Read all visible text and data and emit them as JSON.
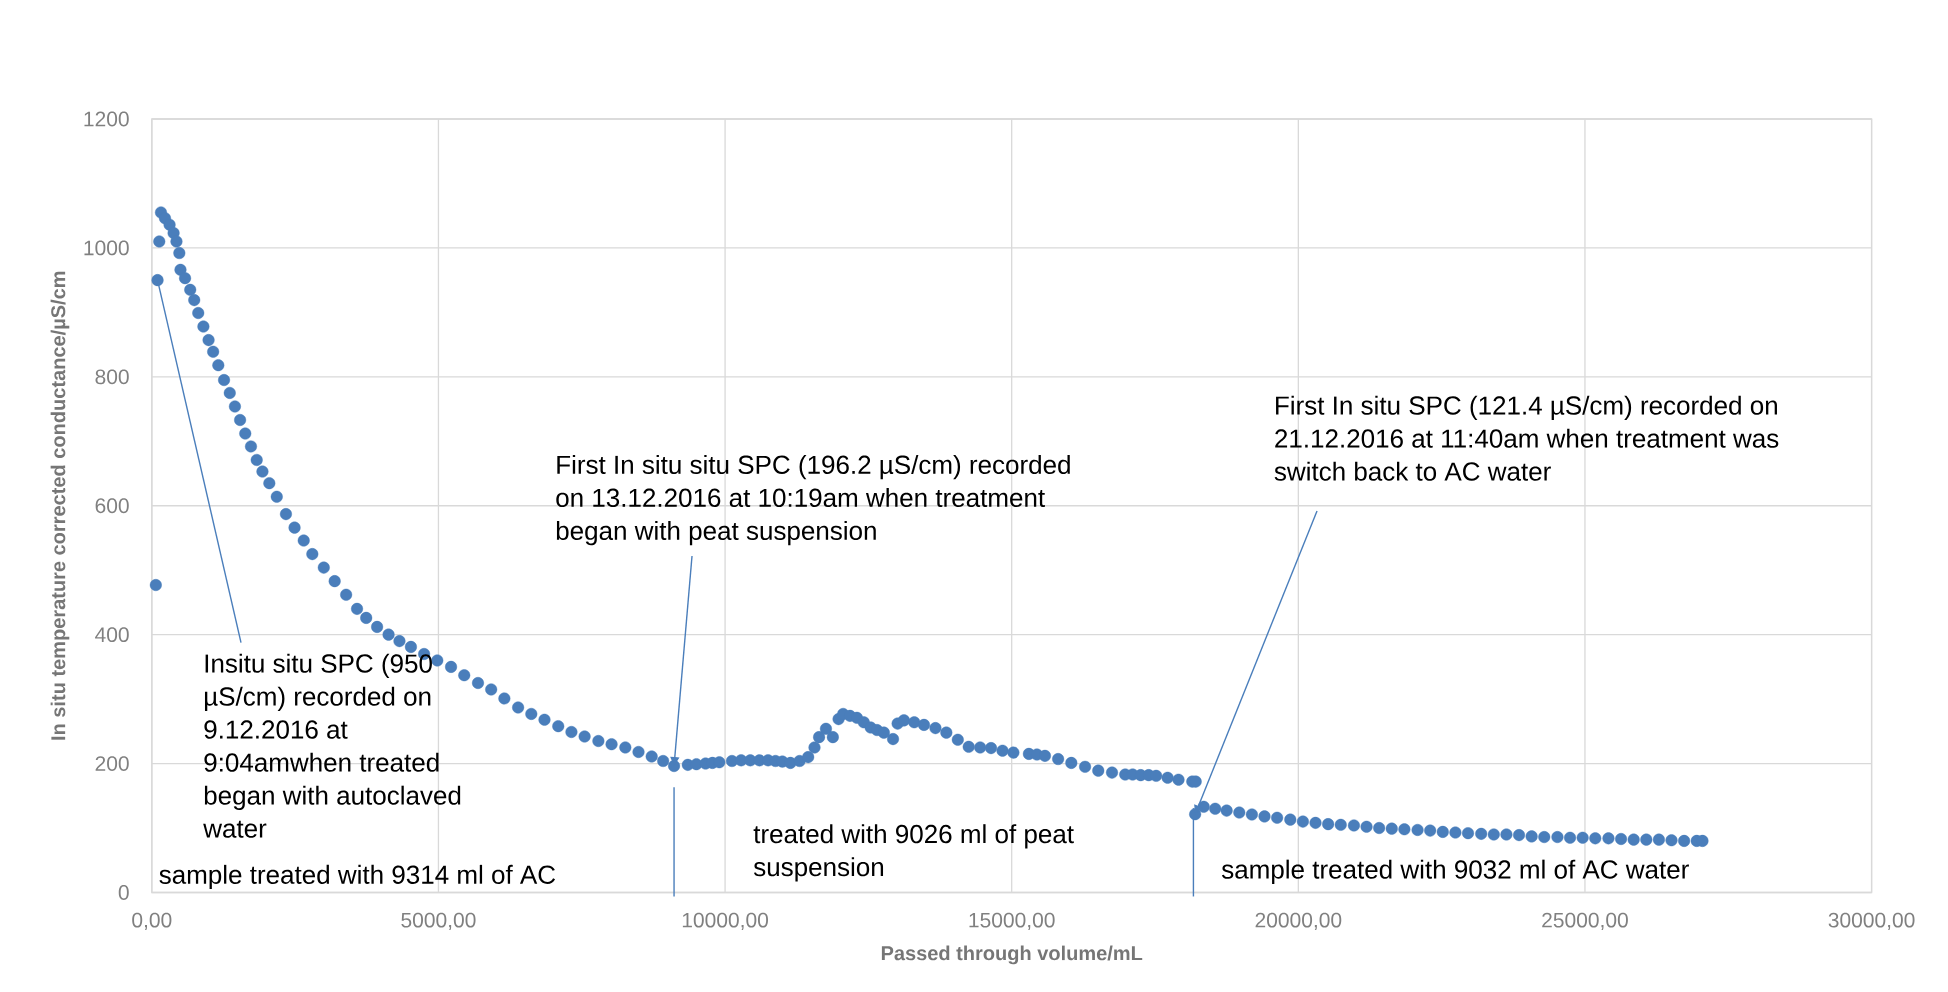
{
  "chart_data": {
    "type": "scatter",
    "xlabel": "Passed through volume/mL",
    "ylabel": "In situ temperature corrected conductance/µS/cm",
    "x": [
      70,
      100,
      130,
      160,
      230,
      310,
      380,
      430,
      480,
      500,
      580,
      670,
      740,
      810,
      900,
      990,
      1070,
      1160,
      1260,
      1360,
      1450,
      1540,
      1630,
      1730,
      1830,
      1930,
      2050,
      2180,
      2340,
      2490,
      2650,
      2800,
      3000,
      3190,
      3390,
      3580,
      3740,
      3930,
      4130,
      4320,
      4520,
      4750,
      4980,
      5220,
      5450,
      5690,
      5920,
      6150,
      6390,
      6620,
      6850,
      7090,
      7320,
      7550,
      7790,
      8020,
      8260,
      8490,
      8720,
      8920,
      9110,
      9350,
      9500,
      9660,
      9780,
      9900,
      10120,
      10280,
      10440,
      10600,
      10750,
      10880,
      11000,
      11140,
      11300,
      11450,
      11560,
      11640,
      11760,
      11880,
      11980,
      12060,
      12180,
      12300,
      12420,
      12540,
      12650,
      12770,
      12930,
      13010,
      13120,
      13300,
      13470,
      13670,
      13860,
      14060,
      14250,
      14450,
      14640,
      14840,
      15030,
      15300,
      15440,
      15580,
      15810,
      16040,
      16280,
      16510,
      16750,
      16980,
      17110,
      17250,
      17390,
      17520,
      17720,
      17910,
      18150,
      18210,
      18200,
      18350,
      18550,
      18750,
      18970,
      19190,
      19410,
      19630,
      19860,
      20080,
      20300,
      20520,
      20740,
      20970,
      21190,
      21410,
      21630,
      21850,
      22080,
      22300,
      22520,
      22740,
      22960,
      23190,
      23410,
      23630,
      23850,
      24070,
      24290,
      24520,
      24740,
      24960,
      25180,
      25410,
      25630,
      25850,
      26070,
      26290,
      26510,
      26730,
      26950,
      27050
    ],
    "values": [
      477,
      950,
      1010,
      1055,
      1046,
      1036,
      1023,
      1010,
      992,
      966,
      953,
      935,
      919,
      899,
      878,
      857,
      839,
      818,
      795,
      775,
      754,
      733,
      712,
      692,
      671,
      653,
      635,
      614,
      587,
      566,
      546,
      525,
      504,
      483,
      462,
      440,
      426,
      412,
      400,
      390,
      381,
      370,
      360,
      350,
      337,
      325,
      315,
      301,
      287,
      277,
      268,
      258,
      249,
      242,
      235,
      230,
      225,
      218,
      211,
      204,
      196.2,
      198,
      199,
      200,
      201,
      202,
      204,
      205,
      205,
      205,
      205,
      204,
      203,
      201,
      204,
      210,
      225,
      241,
      254,
      241,
      269,
      277,
      274,
      271,
      264,
      256,
      252,
      248,
      238,
      262,
      267,
      264,
      260,
      255,
      248,
      237,
      226,
      225,
      224,
      220,
      217,
      215,
      214,
      212,
      207,
      201,
      195,
      189,
      186,
      183,
      183,
      182,
      182,
      181,
      178,
      175,
      172,
      172,
      121.4,
      133,
      130,
      127,
      124,
      121,
      118,
      116,
      113,
      110,
      108,
      106,
      105,
      104,
      102,
      100,
      99,
      98,
      97,
      96,
      94,
      93,
      92,
      91,
      90,
      90,
      89,
      87,
      86,
      86,
      85,
      85,
      84,
      84,
      83,
      82,
      82,
      82,
      81,
      80,
      80,
      80
    ],
    "color": "#4a7ebb",
    "marker": "circle",
    "xlim": [
      0,
      30000
    ],
    "xticks": [
      {
        "value": 0,
        "label": "0,00"
      },
      {
        "value": 5000,
        "label": "5000,00"
      },
      {
        "value": 10000,
        "label": "10000,00"
      },
      {
        "value": 15000,
        "label": "15000,00"
      },
      {
        "value": 20000,
        "label": "20000,00"
      },
      {
        "value": 25000,
        "label": "25000,00"
      },
      {
        "value": 30000,
        "label": "30000,00"
      }
    ],
    "ylim": [
      0,
      1200
    ],
    "yticks": [
      0,
      200,
      400,
      600,
      800,
      1000,
      1200
    ],
    "grid": true,
    "ref_lines": [
      {
        "axis": "x",
        "value": 9110,
        "color": "#4a7ebb"
      },
      {
        "axis": "x",
        "value": 18170,
        "color": "#4a7ebb"
      }
    ],
    "annotations": [
      {
        "text": "Insitu situ SPC (950 µS/cm) recorded on 9.12.2016 at 9:04amwhen treated began with autoclaved water",
        "x": 100,
        "y": 950
      },
      {
        "text": "First In situ situ SPC (196.2 µS/cm) recorded on 13.12.2016 at 10:19am when treatment began with peat suspension",
        "x": 9110,
        "y": 196.2
      },
      {
        "text": "First In situ SPC (121.4 µS/cm) recorded on 21.12.2016 at 11:40am when treatment was switch back to AC water",
        "x": 18200,
        "y": 121.4
      },
      "sample treated with 9314 ml of AC",
      "treated with 9026 ml of peat suspension",
      "sample treated with 9032 ml of AC water"
    ]
  }
}
